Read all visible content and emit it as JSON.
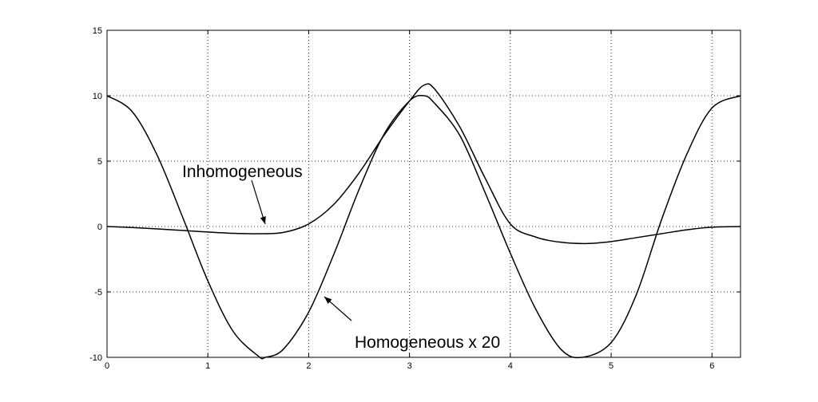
{
  "chart_data": {
    "type": "line",
    "title": "",
    "xlabel": "",
    "ylabel": "",
    "xlim": [
      0,
      6.283
    ],
    "ylim": [
      -10,
      15
    ],
    "xticks": [
      "0",
      "1",
      "2",
      "3",
      "4",
      "5",
      "6"
    ],
    "yticks": [
      "15",
      "10",
      "5",
      "0",
      "-5",
      "-10"
    ],
    "grid": true,
    "series": [
      {
        "x": [
          0,
          0.25,
          0.5,
          0.75,
          1.0,
          1.25,
          1.5,
          1.571,
          1.75,
          2.0,
          2.25,
          2.5,
          2.75,
          3.0,
          3.142,
          3.25,
          3.5,
          3.75,
          4.0,
          4.25,
          4.5,
          4.712,
          5.0,
          5.25,
          5.5,
          5.75,
          6.0,
          6.283
        ],
        "values": [
          10.0,
          8.78,
          5.4,
          0.71,
          -4.16,
          -8.01,
          -9.9,
          -10.0,
          -9.37,
          -6.54,
          -2.11,
          2.84,
          7.09,
          9.6,
          10.0,
          9.41,
          6.95,
          2.59,
          -2.04,
          -6.29,
          -9.37,
          -10.0,
          -8.87,
          -5.2,
          0.53,
          5.52,
          9.06,
          10.0
        ]
      },
      {
        "x": [
          0,
          0.25,
          0.5,
          0.75,
          1.0,
          1.25,
          1.5,
          1.75,
          2.0,
          2.25,
          2.5,
          2.75,
          3.0,
          3.142,
          3.25,
          3.5,
          3.75,
          4.0,
          4.25,
          4.5,
          4.75,
          5.0,
          5.25,
          5.5,
          5.75,
          6.0,
          6.283
        ],
        "values": [
          0.0,
          -0.08,
          -0.18,
          -0.3,
          -0.42,
          -0.52,
          -0.55,
          -0.45,
          0.2,
          1.7,
          4.1,
          7.0,
          9.6,
          10.8,
          10.5,
          7.6,
          3.7,
          0.2,
          -0.8,
          -1.2,
          -1.3,
          -1.15,
          -0.85,
          -0.55,
          -0.25,
          -0.05,
          0.0
        ]
      }
    ],
    "annotations": [
      {
        "text": "Inhomogeneous",
        "points_to_series": 1
      },
      {
        "text": "Homogeneous x 20",
        "points_to_series": 0
      }
    ]
  }
}
